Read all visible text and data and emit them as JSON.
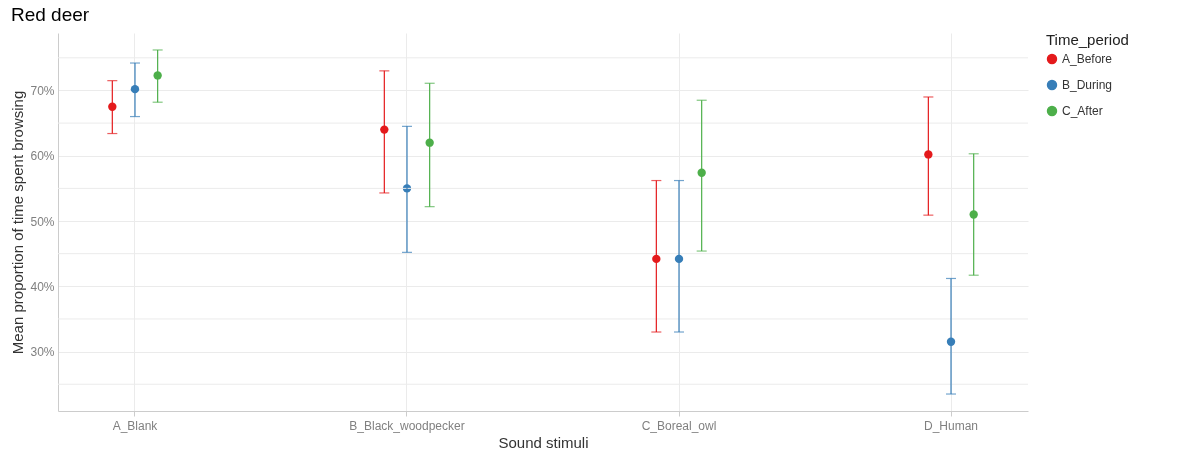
{
  "chart_data": {
    "type": "scatter",
    "title": "Red deer",
    "xlabel": "Sound stimuli",
    "ylabel": "Mean proportion of time spent browsing",
    "legend_title": "Time_period",
    "categories": [
      "A_Blank",
      "B_Black_woodpecker",
      "C_Boreal_owl",
      "D_Human"
    ],
    "series": [
      {
        "name": "A_Before",
        "color": "#e41a1c",
        "values": [
          67.5,
          64.0,
          44.2,
          60.2
        ],
        "errors": [
          [
            63.4,
            71.5
          ],
          [
            54.3,
            73.0
          ],
          [
            33.0,
            56.2
          ],
          [
            50.9,
            69.0
          ]
        ]
      },
      {
        "name": "B_During",
        "color": "#377eb8",
        "values": [
          70.2,
          55.0,
          44.2,
          31.5
        ],
        "errors": [
          [
            66.0,
            74.2
          ],
          [
            45.2,
            64.5
          ],
          [
            33.0,
            56.2
          ],
          [
            23.5,
            41.2
          ]
        ]
      },
      {
        "name": "C_After",
        "color": "#4daf4a",
        "values": [
          72.3,
          62.0,
          57.4,
          51.0
        ],
        "errors": [
          [
            68.2,
            76.2
          ],
          [
            52.2,
            71.1
          ],
          [
            45.4,
            68.5
          ],
          [
            41.7,
            60.3
          ]
        ]
      }
    ],
    "ylim": [
      20.9,
      78.8
    ],
    "yticks": [
      {
        "value": 25,
        "label": null
      },
      {
        "value": 30,
        "label": "30%"
      },
      {
        "value": 35,
        "label": null
      },
      {
        "value": 40,
        "label": "40%"
      },
      {
        "value": 45,
        "label": null
      },
      {
        "value": 50,
        "label": "50%"
      },
      {
        "value": 55,
        "label": null
      },
      {
        "value": 60,
        "label": "60%"
      },
      {
        "value": 65,
        "label": null
      },
      {
        "value": 70,
        "label": "70%"
      },
      {
        "value": 75,
        "label": null
      }
    ],
    "grid": true,
    "legend": "right",
    "marker": "circle"
  }
}
